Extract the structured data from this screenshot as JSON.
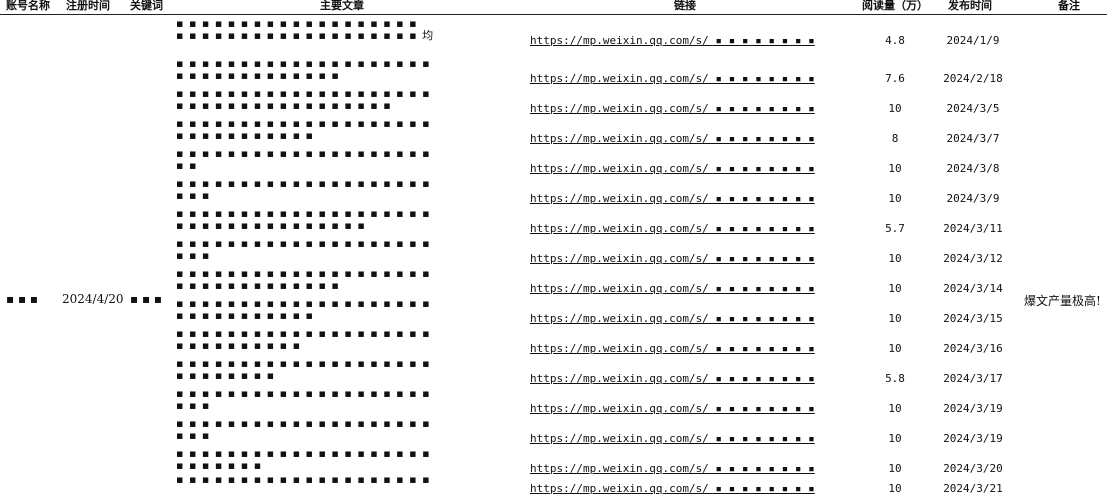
{
  "headers": {
    "account": "账号名称",
    "reg_time": "注册时间",
    "keyword": "关键词",
    "title": "主要文章",
    "link": "链接",
    "reads": "阅读量（万）",
    "date": "发布时间",
    "note": "备注"
  },
  "merged": {
    "account": "▪ ▪ ▪",
    "reg_time": "2024/4/20",
    "keyword": "▪ ▪ ▪",
    "note": "爆文产量极高!"
  },
  "rows": [
    {
      "title": [
        "▪ ▪ ▪ ▪ ▪ ▪ ▪ ▪ ▪ ▪ ▪ ▪ ▪ ▪ ▪ ▪ ▪ ▪ ▪",
        "▪ ▪ ▪ ▪ ▪ ▪ ▪ ▪ ▪ ▪ ▪ ▪ ▪ ▪ ▪ ▪ ▪ ▪ ▪ 均"
      ],
      "link": "https://mp.weixin.qq.com/s/ ▪ ▪ ▪ ▪ ▪ ▪ ▪ ▪",
      "reads": "4.8",
      "date": "2024/1/9"
    },
    {
      "title": [
        "▪ ▪ ▪ ▪ ▪ ▪ ▪ ▪ ▪ ▪ ▪ ▪ ▪ ▪ ▪ ▪ ▪ ▪ ▪ ▪",
        "▪ ▪ ▪ ▪ ▪ ▪ ▪ ▪ ▪ ▪ ▪ ▪ ▪"
      ],
      "link": "https://mp.weixin.qq.com/s/ ▪ ▪ ▪ ▪ ▪ ▪ ▪ ▪",
      "reads": "7.6",
      "date": "2024/2/18"
    },
    {
      "title": [
        "▪ ▪ ▪ ▪ ▪ ▪ ▪ ▪ ▪ ▪ ▪ ▪ ▪ ▪ ▪ ▪ ▪ ▪ ▪ ▪",
        "▪ ▪ ▪ ▪ ▪ ▪ ▪ ▪ ▪ ▪ ▪ ▪ ▪ ▪ ▪ ▪ ▪"
      ],
      "link": "https://mp.weixin.qq.com/s/ ▪ ▪ ▪ ▪ ▪ ▪ ▪ ▪",
      "reads": "10",
      "date": "2024/3/5"
    },
    {
      "title": [
        "▪ ▪ ▪ ▪ ▪ ▪ ▪ ▪ ▪ ▪ ▪ ▪ ▪ ▪ ▪ ▪ ▪ ▪ ▪ ▪",
        "▪ ▪ ▪ ▪ ▪ ▪ ▪ ▪ ▪ ▪ ▪"
      ],
      "link": "https://mp.weixin.qq.com/s/ ▪ ▪ ▪ ▪ ▪ ▪ ▪ ▪",
      "reads": "8",
      "date": "2024/3/7"
    },
    {
      "title": [
        "▪ ▪ ▪ ▪ ▪ ▪ ▪ ▪ ▪ ▪ ▪ ▪ ▪ ▪ ▪ ▪ ▪ ▪ ▪ ▪",
        "▪ ▪"
      ],
      "link": "https://mp.weixin.qq.com/s/ ▪ ▪ ▪ ▪ ▪ ▪ ▪ ▪",
      "reads": "10",
      "date": "2024/3/8"
    },
    {
      "title": [
        "▪ ▪ ▪ ▪ ▪ ▪ ▪ ▪ ▪ ▪ ▪ ▪ ▪ ▪ ▪ ▪ ▪ ▪ ▪ ▪",
        "▪ ▪ ▪"
      ],
      "link": "https://mp.weixin.qq.com/s/ ▪ ▪ ▪ ▪ ▪ ▪ ▪ ▪",
      "reads": "10",
      "date": "2024/3/9"
    },
    {
      "title": [
        "▪ ▪ ▪ ▪ ▪ ▪ ▪ ▪ ▪ ▪ ▪ ▪ ▪ ▪ ▪ ▪ ▪ ▪ ▪ ▪",
        "▪ ▪ ▪ ▪ ▪ ▪ ▪ ▪ ▪ ▪ ▪ ▪ ▪ ▪ ▪"
      ],
      "link": "https://mp.weixin.qq.com/s/ ▪ ▪ ▪ ▪ ▪ ▪ ▪ ▪",
      "reads": "5.7",
      "date": "2024/3/11"
    },
    {
      "title": [
        "▪ ▪ ▪ ▪ ▪ ▪ ▪ ▪ ▪ ▪ ▪ ▪ ▪ ▪ ▪ ▪ ▪ ▪ ▪ ▪",
        "▪ ▪ ▪"
      ],
      "link": "https://mp.weixin.qq.com/s/ ▪ ▪ ▪ ▪ ▪ ▪ ▪ ▪",
      "reads": "10",
      "date": "2024/3/12"
    },
    {
      "title": [
        "▪ ▪ ▪ ▪ ▪ ▪ ▪ ▪ ▪ ▪ ▪ ▪ ▪ ▪ ▪ ▪ ▪ ▪ ▪ ▪",
        "▪ ▪ ▪ ▪ ▪ ▪ ▪ ▪ ▪ ▪ ▪ ▪ ▪"
      ],
      "link": "https://mp.weixin.qq.com/s/ ▪ ▪ ▪ ▪ ▪ ▪ ▪ ▪",
      "reads": "10",
      "date": "2024/3/14"
    },
    {
      "title": [
        "▪ ▪ ▪ ▪ ▪ ▪ ▪ ▪ ▪ ▪ ▪ ▪ ▪ ▪ ▪ ▪ ▪ ▪ ▪ ▪",
        "▪ ▪ ▪ ▪ ▪ ▪ ▪ ▪ ▪ ▪ ▪"
      ],
      "link": "https://mp.weixin.qq.com/s/ ▪ ▪ ▪ ▪ ▪ ▪ ▪ ▪",
      "reads": "10",
      "date": "2024/3/15"
    },
    {
      "title": [
        "▪ ▪ ▪ ▪ ▪ ▪ ▪ ▪ ▪ ▪ ▪ ▪ ▪ ▪ ▪ ▪ ▪ ▪ ▪ ▪",
        "▪ ▪ ▪ ▪ ▪ ▪ ▪ ▪ ▪ ▪"
      ],
      "link": "https://mp.weixin.qq.com/s/ ▪ ▪ ▪ ▪ ▪ ▪ ▪ ▪",
      "reads": "10",
      "date": "2024/3/16"
    },
    {
      "title": [
        "▪ ▪ ▪ ▪ ▪ ▪ ▪ ▪ ▪ ▪ ▪ ▪ ▪ ▪ ▪ ▪ ▪ ▪ ▪ ▪",
        "▪ ▪ ▪ ▪ ▪ ▪ ▪ ▪"
      ],
      "link": "https://mp.weixin.qq.com/s/ ▪ ▪ ▪ ▪ ▪ ▪ ▪ ▪",
      "reads": "5.8",
      "date": "2024/3/17"
    },
    {
      "title": [
        "▪ ▪ ▪ ▪ ▪ ▪ ▪ ▪ ▪ ▪ ▪ ▪ ▪ ▪ ▪ ▪ ▪ ▪ ▪ ▪",
        "▪ ▪ ▪"
      ],
      "link": "https://mp.weixin.qq.com/s/ ▪ ▪ ▪ ▪ ▪ ▪ ▪ ▪",
      "reads": "10",
      "date": "2024/3/19"
    },
    {
      "title": [
        "▪ ▪ ▪ ▪ ▪ ▪ ▪ ▪ ▪ ▪ ▪ ▪ ▪ ▪ ▪ ▪ ▪ ▪ ▪ ▪",
        "▪ ▪ ▪"
      ],
      "link": "https://mp.weixin.qq.com/s/ ▪ ▪ ▪ ▪ ▪ ▪ ▪ ▪",
      "reads": "10",
      "date": "2024/3/19"
    },
    {
      "title": [
        "▪ ▪ ▪ ▪ ▪ ▪ ▪ ▪ ▪ ▪ ▪ ▪ ▪ ▪ ▪ ▪ ▪ ▪ ▪ ▪",
        "▪ ▪ ▪ ▪ ▪ ▪ ▪"
      ],
      "link": "https://mp.weixin.qq.com/s/ ▪ ▪ ▪ ▪ ▪ ▪ ▪ ▪",
      "reads": "10",
      "date": "2024/3/20"
    },
    {
      "title": [
        "▪ ▪ ▪ ▪ ▪ ▪ ▪ ▪ ▪ ▪ ▪ ▪ ▪ ▪ ▪ ▪ ▪ ▪ ▪ ▪",
        ""
      ],
      "link": "https://mp.weixin.qq.com/s/ ▪ ▪ ▪ ▪ ▪ ▪ ▪ ▪",
      "reads": "10",
      "date": "2024/3/21"
    }
  ]
}
